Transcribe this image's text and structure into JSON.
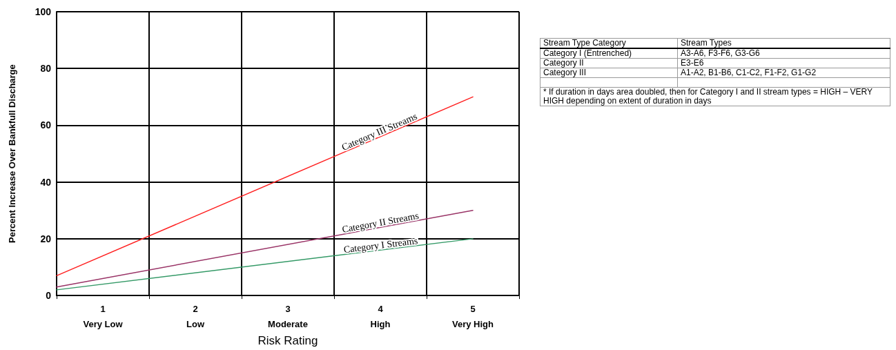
{
  "chart_data": {
    "type": "line",
    "xlabel": "Risk Rating",
    "ylabel": "Percent Increase Over Bankfull Discharge",
    "xlim": [
      0.5,
      5.5
    ],
    "x": [
      0.5,
      5
    ],
    "xticks": [
      {
        "value": 0.5,
        "label": null
      },
      {
        "value": 1,
        "label": "1\nVery Low"
      },
      {
        "value": 1.5,
        "label": null
      },
      {
        "value": 2,
        "label": "2\nLow"
      },
      {
        "value": 2.5,
        "label": null
      },
      {
        "value": 3,
        "label": "3\nModerate"
      },
      {
        "value": 3.5,
        "label": null
      },
      {
        "value": 4,
        "label": "4\nHigh"
      },
      {
        "value": 4.5,
        "label": null
      },
      {
        "value": 5,
        "label": "5\nVery High"
      },
      {
        "value": 5.5,
        "label": null
      }
    ],
    "ylim": [
      0,
      100
    ],
    "yticks": [
      0,
      20,
      40,
      60,
      80,
      100
    ],
    "grid": true,
    "legend": false,
    "marker": "none",
    "line_style": "solid",
    "series": [
      {
        "name": "Category III Streams",
        "color": "#ff2020",
        "values": [
          7,
          70
        ]
      },
      {
        "name": "Category II Streams",
        "color": "#993366",
        "values": [
          3,
          30
        ]
      },
      {
        "name": "Category I Streams",
        "color": "#339966",
        "values": [
          2,
          20
        ]
      }
    ],
    "annotations": [
      "Stream Type Category",
      "Stream Types",
      "Category I  (Entrenched)",
      "A3-A6, F3-F6, G3-G6",
      "Category II",
      "E3-E6",
      "Category III",
      "A1-A2, B1-B6, C1-C2, F1-F2, G1-G2",
      "* If duration in days area doubled, then for Category I and II stream types = HIGH – VERY HIGH depending on extent of duration in days"
    ]
  }
}
